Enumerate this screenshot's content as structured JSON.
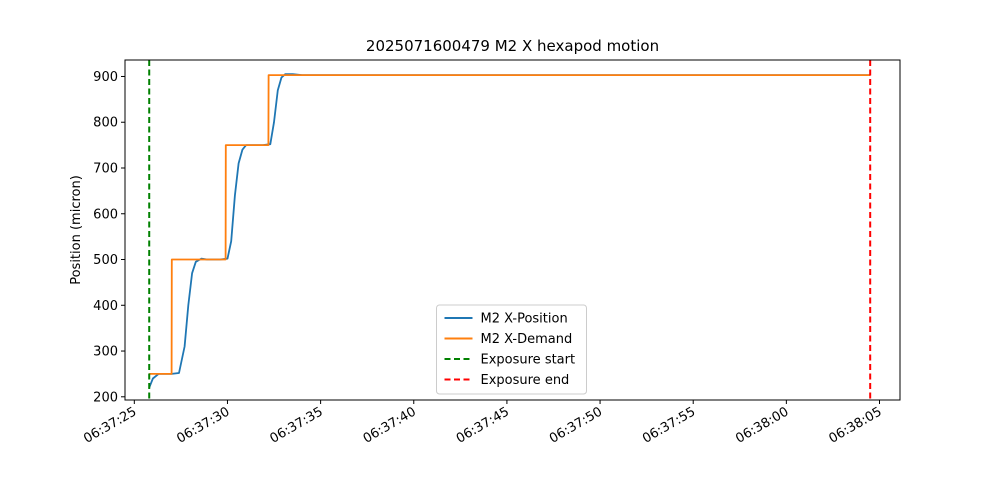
{
  "chart_data": {
    "type": "line",
    "title": "2025071600479 M2 X hexapod motion",
    "xlabel": "",
    "ylabel": "Position (micron)",
    "x_unit": "time",
    "xlim": [
      "06:37:24.5",
      "06:38:06.1"
    ],
    "ylim": [
      193,
      936
    ],
    "x_ticks": [
      "06:37:25",
      "06:37:30",
      "06:37:35",
      "06:37:40",
      "06:37:45",
      "06:37:50",
      "06:37:55",
      "06:38:00",
      "06:38:05"
    ],
    "y_ticks": [
      200,
      300,
      400,
      500,
      600,
      700,
      800,
      900
    ],
    "grid": false,
    "legend_position": "lower center",
    "series": [
      {
        "name": "M2 X-Position",
        "color": "#1f77b4",
        "style": "solid",
        "x": [
          "06:37:25.8",
          "06:37:26.0",
          "06:37:26.3",
          "06:37:26.6",
          "06:37:27.0",
          "06:37:27.4",
          "06:37:27.7",
          "06:37:27.9",
          "06:37:28.1",
          "06:37:28.3",
          "06:37:28.6",
          "06:37:28.9",
          "06:37:29.2",
          "06:37:29.6",
          "06:37:30.0",
          "06:37:30.2",
          "06:37:30.4",
          "06:37:30.6",
          "06:37:30.8",
          "06:37:31.0",
          "06:37:31.3",
          "06:37:31.6",
          "06:37:31.9",
          "06:37:32.3",
          "06:37:32.5",
          "06:37:32.7",
          "06:37:32.9",
          "06:37:33.1",
          "06:37:33.5",
          "06:37:34.0",
          "06:38:04.5"
        ],
        "y": [
          220,
          240,
          250,
          250,
          250,
          252,
          310,
          400,
          470,
          495,
          502,
          500,
          500,
          500,
          502,
          540,
          640,
          710,
          740,
          750,
          750,
          750,
          750,
          752,
          800,
          870,
          898,
          905,
          905,
          903,
          903
        ]
      },
      {
        "name": "M2 X-Demand",
        "color": "#ff7f0e",
        "style": "solid",
        "x": [
          "06:37:25.8",
          "06:37:27.0",
          "06:37:27.01",
          "06:37:29.9",
          "06:37:29.91",
          "06:37:32.2",
          "06:37:32.21",
          "06:38:04.5"
        ],
        "y": [
          250,
          250,
          500,
          500,
          750,
          750,
          903,
          903
        ]
      },
      {
        "name": "Exposure start",
        "color": "#008000",
        "style": "dashed",
        "x_vline": "06:37:25.8"
      },
      {
        "name": "Exposure end",
        "color": "#ff0000",
        "style": "dashed",
        "x_vline": "06:38:04.5"
      }
    ]
  }
}
